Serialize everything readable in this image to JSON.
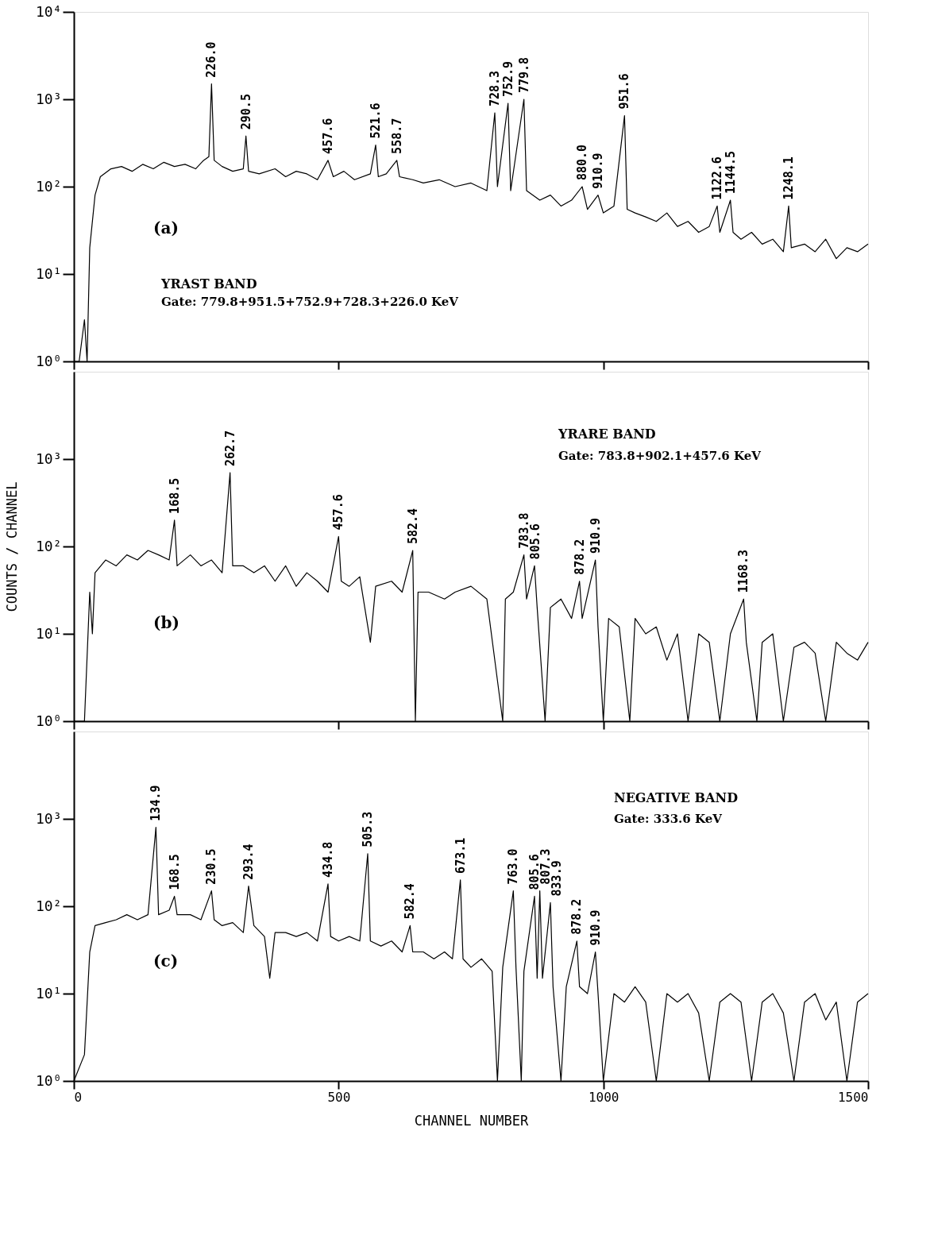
{
  "chart_data": [
    {
      "type": "line",
      "xlim": [
        0,
        1500
      ],
      "xticks": [
        0,
        500,
        1000,
        1500
      ],
      "ylim": [
        1,
        10000
      ],
      "log": true,
      "tick_labels": "y",
      "yticks": [
        {
          "value": 1,
          "label": "10⁰"
        },
        {
          "value": 10,
          "label": "10¹"
        },
        {
          "value": 100,
          "label": "10²"
        },
        {
          "value": 1000,
          "label": "10³"
        },
        {
          "value": 10000,
          "label": "10⁴"
        }
      ],
      "series": [
        {
          "color": "#000000",
          "x": [
            0,
            10,
            20,
            25,
            30,
            40,
            50,
            70,
            90,
            110,
            130,
            150,
            170,
            190,
            210,
            230,
            245,
            255,
            260,
            265,
            280,
            300,
            320,
            325,
            330,
            350,
            380,
            400,
            420,
            440,
            460,
            480,
            490,
            510,
            530,
            560,
            570,
            575,
            590,
            610,
            615,
            640,
            660,
            690,
            720,
            750,
            780,
            795,
            800,
            820,
            825,
            850,
            855,
            880,
            900,
            920,
            940,
            960,
            970,
            990,
            1000,
            1020,
            1040,
            1045,
            1060,
            1080,
            1100,
            1120,
            1140,
            1160,
            1180,
            1200,
            1215,
            1220,
            1240,
            1245,
            1260,
            1280,
            1300,
            1320,
            1340,
            1350,
            1355,
            1380,
            1400,
            1420,
            1440,
            1460,
            1480,
            1500
          ],
          "values": [
            1,
            1,
            3,
            1,
            20,
            80,
            130,
            160,
            170,
            150,
            180,
            160,
            190,
            170,
            180,
            160,
            200,
            220,
            1500,
            200,
            170,
            150,
            160,
            380,
            150,
            140,
            160,
            130,
            150,
            140,
            120,
            200,
            130,
            150,
            120,
            140,
            300,
            130,
            140,
            200,
            130,
            120,
            110,
            120,
            100,
            110,
            90,
            700,
            100,
            900,
            90,
            1000,
            90,
            70,
            80,
            60,
            70,
            100,
            55,
            80,
            50,
            60,
            650,
            55,
            50,
            45,
            40,
            50,
            35,
            40,
            30,
            35,
            60,
            30,
            70,
            30,
            25,
            30,
            22,
            25,
            18,
            60,
            20,
            22,
            18,
            25,
            15,
            20,
            18,
            22
          ]
        }
      ],
      "annotations": [
        {
          "text": "226.0",
          "x": 260,
          "y": 1500
        },
        {
          "text": "290.5",
          "x": 325,
          "y": 380
        },
        {
          "text": "457.6",
          "x": 480,
          "y": 200
        },
        {
          "text": "521.6",
          "x": 570,
          "y": 300
        },
        {
          "text": "558.7",
          "x": 610,
          "y": 200
        },
        {
          "text": "728.3",
          "x": 795,
          "y": 700
        },
        {
          "text": "752.9",
          "x": 820,
          "y": 900
        },
        {
          "text": "779.8",
          "x": 850,
          "y": 1000
        },
        {
          "text": "880.0",
          "x": 960,
          "y": 100
        },
        {
          "text": "910.9",
          "x": 990,
          "y": 80
        },
        {
          "text": "951.6",
          "x": 1040,
          "y": 650
        },
        {
          "text": "1122.6",
          "x": 1215,
          "y": 60
        },
        {
          "text": "1144.5",
          "x": 1240,
          "y": 70
        },
        {
          "text": "1248.1",
          "x": 1350,
          "y": 60
        },
        "(a)",
        "YRAST BAND",
        "Gate: 779.8+951.5+752.9+728.3+226.0 KeV"
      ]
    },
    {
      "type": "line",
      "xlim": [
        0,
        1500
      ],
      "xticks": [
        0,
        500,
        1000,
        1500
      ],
      "ylim": [
        1,
        10000
      ],
      "log": true,
      "tick_labels": "y",
      "ylabel": "COUNTS / CHANNEL",
      "yticks": [
        {
          "value": 1,
          "label": "10⁰"
        },
        {
          "value": 10,
          "label": "10¹"
        },
        {
          "value": 100,
          "label": "10²"
        },
        {
          "value": 1000,
          "label": "10³"
        }
      ],
      "series": [
        {
          "color": "#000000",
          "x": [
            0,
            20,
            30,
            35,
            40,
            60,
            80,
            100,
            120,
            140,
            160,
            180,
            190,
            195,
            220,
            240,
            260,
            280,
            295,
            300,
            320,
            340,
            360,
            380,
            400,
            420,
            440,
            460,
            480,
            500,
            505,
            520,
            540,
            560,
            570,
            600,
            620,
            640,
            645,
            650,
            670,
            700,
            720,
            750,
            780,
            810,
            815,
            830,
            850,
            855,
            870,
            875,
            890,
            900,
            920,
            940,
            955,
            960,
            985,
            990,
            1000,
            1010,
            1030,
            1050,
            1060,
            1080,
            1100,
            1120,
            1140,
            1160,
            1180,
            1200,
            1220,
            1240,
            1265,
            1270,
            1290,
            1300,
            1320,
            1340,
            1360,
            1380,
            1400,
            1420,
            1440,
            1460,
            1480,
            1500
          ],
          "values": [
            1,
            1,
            30,
            10,
            50,
            70,
            60,
            80,
            70,
            90,
            80,
            70,
            200,
            60,
            80,
            60,
            70,
            50,
            700,
            60,
            60,
            50,
            60,
            40,
            60,
            35,
            50,
            40,
            30,
            130,
            40,
            35,
            45,
            8,
            35,
            40,
            30,
            90,
            1,
            30,
            30,
            25,
            30,
            35,
            25,
            1,
            25,
            30,
            80,
            25,
            60,
            20,
            1,
            20,
            25,
            15,
            40,
            15,
            70,
            12,
            1,
            15,
            12,
            1,
            15,
            10,
            12,
            5,
            10,
            1,
            10,
            8,
            1,
            10,
            25,
            8,
            1,
            8,
            10,
            1,
            7,
            8,
            6,
            1,
            8,
            6,
            5,
            8
          ]
        }
      ],
      "annotations": [
        {
          "text": "168.5",
          "x": 190,
          "y": 200
        },
        {
          "text": "262.7",
          "x": 295,
          "y": 700
        },
        {
          "text": "457.6",
          "x": 500,
          "y": 130
        },
        {
          "text": "582.4",
          "x": 640,
          "y": 90
        },
        {
          "text": "783.8",
          "x": 850,
          "y": 80
        },
        {
          "text": "805.6",
          "x": 870,
          "y": 60
        },
        {
          "text": "878.2",
          "x": 955,
          "y": 40
        },
        {
          "text": "910.9",
          "x": 985,
          "y": 70
        },
        {
          "text": "1168.3",
          "x": 1265,
          "y": 25
        },
        "(b)",
        "YRARE BAND",
        "Gate: 783.8+902.1+457.6 KeV"
      ]
    },
    {
      "type": "line",
      "xlim": [
        0,
        1500
      ],
      "xticks": [
        0,
        500,
        1000,
        1500
      ],
      "ylim": [
        1,
        10000
      ],
      "log": true,
      "xlabel": "CHANNEL NUMBER",
      "yticks": [
        {
          "value": 1,
          "label": "10⁰"
        },
        {
          "value": 10,
          "label": "10¹"
        },
        {
          "value": 100,
          "label": "10²"
        },
        {
          "value": 1000,
          "label": "10³"
        }
      ],
      "series": [
        {
          "color": "#000000",
          "x": [
            0,
            20,
            30,
            40,
            60,
            80,
            100,
            120,
            140,
            155,
            160,
            180,
            190,
            195,
            220,
            240,
            260,
            265,
            280,
            300,
            320,
            330,
            340,
            360,
            370,
            380,
            400,
            420,
            440,
            460,
            480,
            485,
            500,
            520,
            540,
            555,
            560,
            580,
            600,
            620,
            635,
            640,
            660,
            680,
            700,
            715,
            730,
            735,
            750,
            770,
            790,
            800,
            810,
            830,
            835,
            845,
            850,
            870,
            875,
            880,
            885,
            900,
            905,
            920,
            930,
            950,
            955,
            970,
            985,
            990,
            1000,
            1020,
            1040,
            1060,
            1080,
            1100,
            1120,
            1140,
            1160,
            1180,
            1200,
            1220,
            1240,
            1260,
            1280,
            1300,
            1320,
            1340,
            1360,
            1380,
            1400,
            1420,
            1440,
            1460,
            1480,
            1500
          ],
          "values": [
            1,
            2,
            30,
            60,
            65,
            70,
            80,
            70,
            80,
            800,
            80,
            90,
            130,
            80,
            80,
            70,
            150,
            70,
            60,
            65,
            50,
            170,
            60,
            45,
            15,
            50,
            50,
            45,
            50,
            40,
            180,
            45,
            40,
            45,
            40,
            400,
            40,
            35,
            40,
            30,
            60,
            30,
            30,
            25,
            30,
            25,
            200,
            25,
            20,
            25,
            18,
            1,
            20,
            150,
            20,
            1,
            18,
            130,
            15,
            150,
            15,
            110,
            12,
            1,
            12,
            40,
            12,
            10,
            30,
            10,
            1,
            10,
            8,
            12,
            8,
            1,
            10,
            8,
            10,
            6,
            1,
            8,
            10,
            8,
            1,
            8,
            10,
            6,
            1,
            8,
            10,
            5,
            8,
            1,
            8,
            10
          ]
        }
      ],
      "annotations": [
        {
          "text": "134.9",
          "x": 155,
          "y": 800
        },
        {
          "text": "168.5",
          "x": 190,
          "y": 130
        },
        {
          "text": "230.5",
          "x": 260,
          "y": 150
        },
        {
          "text": "293.4",
          "x": 330,
          "y": 170
        },
        {
          "text": "434.8",
          "x": 480,
          "y": 180
        },
        {
          "text": "505.3",
          "x": 555,
          "y": 400
        },
        {
          "text": "582.4",
          "x": 635,
          "y": 60
        },
        {
          "text": "673.1",
          "x": 730,
          "y": 200
        },
        {
          "text": "763.0",
          "x": 830,
          "y": 150
        },
        {
          "text": "805.6",
          "x": 870,
          "y": 130
        },
        {
          "text": "807.3",
          "x": 880,
          "y": 150
        },
        {
          "text": "833.9",
          "x": 900,
          "y": 110
        },
        {
          "text": "878.2",
          "x": 950,
          "y": 40
        },
        {
          "text": "910.9",
          "x": 985,
          "y": 30
        },
        "(c)",
        "NEGATIVE BAND",
        "Gate: 333.6 KeV"
      ]
    }
  ]
}
